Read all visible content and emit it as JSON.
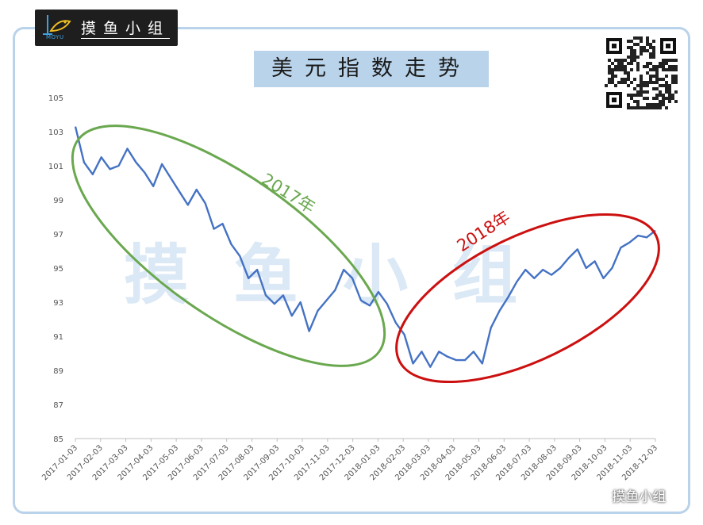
{
  "brand": {
    "name": "摸鱼小组",
    "sub": "MOYU"
  },
  "chart_data": {
    "type": "line",
    "title": "美元指数走势",
    "xlabel": "",
    "ylabel": "",
    "ylim": [
      85,
      105
    ],
    "yticks": [
      105,
      103,
      101,
      99,
      97,
      95,
      93,
      91,
      89,
      87,
      85
    ],
    "grid": false,
    "legend": "none",
    "line_color": "#4472c4",
    "x_ticks": [
      "2017-01-03",
      "2017-02-03",
      "2017-03-03",
      "2017-04-03",
      "2017-05-03",
      "2017-06-03",
      "2017-07-03",
      "2017-08-03",
      "2017-09-03",
      "2017-10-03",
      "2017-11-03",
      "2017-12-03",
      "2018-01-03",
      "2018-02-03",
      "2018-03-03",
      "2018-04-03",
      "2018-05-03",
      "2018-06-03",
      "2018-07-03",
      "2018-08-03",
      "2018-09-03",
      "2018-10-03",
      "2018-11-03",
      "2018-12-03"
    ],
    "series": [
      {
        "values": [
          103.3,
          101.2,
          100.5,
          101.5,
          100.8,
          101.0,
          102.0,
          101.2,
          100.6,
          99.8,
          101.1,
          100.3,
          99.5,
          98.7,
          99.6,
          98.8,
          97.3,
          97.6,
          96.4,
          95.7,
          94.4,
          94.9,
          93.4,
          92.9,
          93.4,
          92.2,
          93.0,
          91.3,
          92.5,
          93.1,
          93.7,
          94.9,
          94.4,
          93.1,
          92.8,
          93.6,
          92.9,
          91.8,
          91.1,
          89.4,
          90.1,
          89.2,
          90.1,
          89.8,
          89.6,
          89.6,
          90.1,
          89.4,
          91.5,
          92.5,
          93.3,
          94.2,
          94.9,
          94.4,
          94.9,
          94.6,
          95.0,
          95.6,
          96.1,
          95.0,
          95.4,
          94.4,
          95.0,
          96.2,
          96.5,
          96.9,
          96.8,
          97.2
        ]
      }
    ],
    "annotations": [
      {
        "text": "2017年",
        "color": "#6aa84f"
      },
      {
        "text": "2018年",
        "color": "#cc1010"
      }
    ]
  },
  "watermark": "摸鱼小组",
  "footer": {
    "label": "摸鱼小组"
  },
  "colors": {
    "accent": "#b9d3ea",
    "ellipse_2017": "#6aa84f",
    "ellipse_2018": "#cc1010"
  }
}
